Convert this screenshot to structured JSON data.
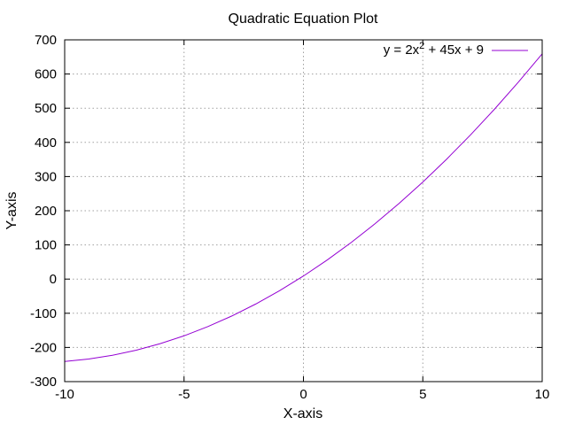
{
  "chart_data": {
    "type": "line",
    "title": "Quadratic Equation Plot",
    "xlabel": "X-axis",
    "ylabel": "Y-axis",
    "xlim": [
      -10,
      10
    ],
    "ylim": [
      -300,
      700
    ],
    "x_ticks": [
      -10,
      -5,
      0,
      5,
      10
    ],
    "y_ticks": [
      -300,
      -200,
      -100,
      0,
      100,
      200,
      300,
      400,
      500,
      600,
      700
    ],
    "grid": true,
    "legend_position": "top-right",
    "series": [
      {
        "name": "y = 2x² + 45x + 9",
        "legend_base": "y = 2x",
        "legend_sup": "2",
        "legend_rest": " + 45x + 9",
        "color": "#9400d3",
        "x": [
          -10,
          -9,
          -8,
          -7,
          -6,
          -5,
          -4,
          -3,
          -2,
          -1,
          0,
          1,
          2,
          3,
          4,
          5,
          6,
          7,
          8,
          9,
          10
        ],
        "y": [
          -241,
          -234,
          -223,
          -208,
          -189,
          -166,
          -139,
          -108,
          -73,
          -34,
          9,
          56,
          107,
          162,
          221,
          284,
          351,
          422,
          497,
          576,
          659
        ]
      }
    ]
  }
}
